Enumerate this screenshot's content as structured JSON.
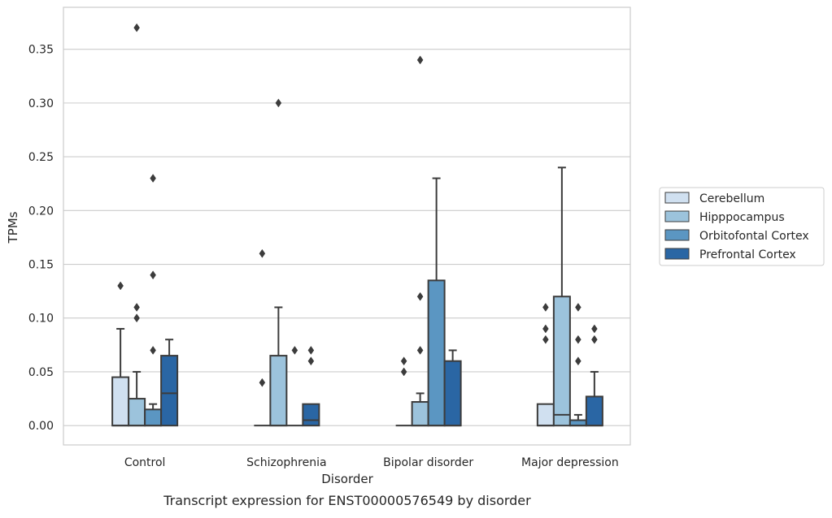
{
  "caption": "Transcript expression for ENST00000576549 by disorder",
  "chart_data": {
    "type": "box",
    "xlabel": "Disorder",
    "ylabel": "TPMs",
    "ylim": [
      -0.018,
      0.389
    ],
    "yticks": [
      "0.00",
      "0.05",
      "0.10",
      "0.15",
      "0.20",
      "0.25",
      "0.30",
      "0.35"
    ],
    "ytick_values": [
      0,
      0.05,
      0.1,
      0.15,
      0.2,
      0.25,
      0.3,
      0.35
    ],
    "grid": true,
    "legend_position": "right",
    "categories": [
      "Control",
      "Schizophrenia",
      "Bipolar disorder",
      "Major depression"
    ],
    "series": [
      {
        "name": "Cerebellum",
        "color": "#d0e0f0",
        "boxes": [
          {
            "q1": 0,
            "median": 0,
            "q3": 0.045,
            "whisker_low": 0,
            "whisker_high": 0.09,
            "outliers": [
              0.13
            ]
          },
          {
            "q1": 0,
            "median": 0,
            "q3": 0,
            "whisker_low": 0,
            "whisker_high": 0,
            "outliers": [
              0.04,
              0.16
            ]
          },
          {
            "q1": 0,
            "median": 0,
            "q3": 0,
            "whisker_low": 0,
            "whisker_high": 0,
            "outliers": [
              0.05,
              0.06
            ]
          },
          {
            "q1": 0,
            "median": 0,
            "q3": 0.02,
            "whisker_low": 0,
            "whisker_high": 0.02,
            "outliers": [
              0.08,
              0.09,
              0.11
            ]
          }
        ]
      },
      {
        "name": "Hipppocampus",
        "color": "#9cc3dc",
        "boxes": [
          {
            "q1": 0,
            "median": 0,
            "q3": 0.025,
            "whisker_low": 0,
            "whisker_high": 0.05,
            "outliers": [
              0.1,
              0.11,
              0.37
            ]
          },
          {
            "q1": 0,
            "median": 0,
            "q3": 0.065,
            "whisker_low": 0,
            "whisker_high": 0.11,
            "outliers": [
              0.3
            ]
          },
          {
            "q1": 0,
            "median": 0,
            "q3": 0.022,
            "whisker_low": 0,
            "whisker_high": 0.03,
            "outliers": [
              0.07,
              0.12,
              0.34
            ]
          },
          {
            "q1": 0,
            "median": 0.01,
            "q3": 0.12,
            "whisker_low": 0,
            "whisker_high": 0.24,
            "outliers": []
          }
        ]
      },
      {
        "name": "Orbitofontal Cortex",
        "color": "#5b96c2",
        "boxes": [
          {
            "q1": 0,
            "median": 0,
            "q3": 0.015,
            "whisker_low": 0,
            "whisker_high": 0.02,
            "outliers": [
              0.07,
              0.14,
              0.23
            ]
          },
          {
            "q1": 0,
            "median": 0,
            "q3": 0,
            "whisker_low": 0,
            "whisker_high": 0,
            "outliers": [
              0.07
            ]
          },
          {
            "q1": 0,
            "median": 0,
            "q3": 0.135,
            "whisker_low": 0,
            "whisker_high": 0.23,
            "outliers": []
          },
          {
            "q1": 0,
            "median": 0,
            "q3": 0.005,
            "whisker_low": 0,
            "whisker_high": 0.01,
            "outliers": [
              0.06,
              0.08,
              0.11
            ]
          }
        ]
      },
      {
        "name": "Prefrontal Cortex",
        "color": "#2a66a4",
        "boxes": [
          {
            "q1": 0,
            "median": 0.03,
            "q3": 0.065,
            "whisker_low": 0,
            "whisker_high": 0.08,
            "outliers": []
          },
          {
            "q1": 0,
            "median": 0.005,
            "q3": 0.02,
            "whisker_low": 0,
            "whisker_high": 0.02,
            "outliers": [
              0.06,
              0.07
            ]
          },
          {
            "q1": 0,
            "median": 0,
            "q3": 0.06,
            "whisker_low": 0,
            "whisker_high": 0.07,
            "outliers": []
          },
          {
            "q1": 0,
            "median": 0,
            "q3": 0.027,
            "whisker_low": 0,
            "whisker_high": 0.05,
            "outliers": [
              0.08,
              0.09
            ]
          }
        ]
      }
    ]
  }
}
